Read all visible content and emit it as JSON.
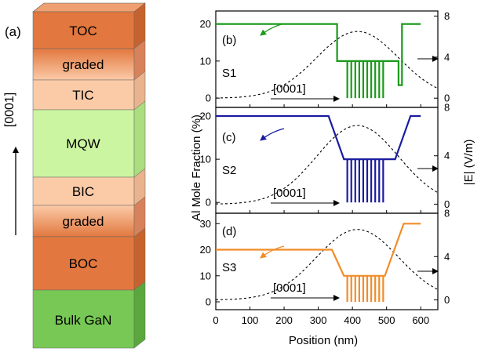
{
  "panel_a": {
    "label": "(a)",
    "direction_label": "[0001]",
    "layers": [
      {
        "name": "TOC",
        "color": "#e2783f"
      },
      {
        "name": "graded",
        "color": "#e9945f"
      },
      {
        "name": "TIC",
        "color": "#fbcaa7"
      },
      {
        "name": "MQW",
        "color": "#ccf5a1"
      },
      {
        "name": "BIC",
        "color": "#fbcaa7"
      },
      {
        "name": "graded",
        "color": "#e9945f"
      },
      {
        "name": "BOC",
        "color": "#e2783f"
      },
      {
        "name": "Bulk GaN",
        "color": "#78c855"
      }
    ]
  },
  "chart_data": [
    {
      "type": "line",
      "panel_label": "(b)",
      "structure_label": "S1",
      "direction_label": "[0001]",
      "color": "#1a9a1a",
      "ylim_left": [
        -2.5,
        23.5
      ],
      "ylim_right": [
        -0.9,
        8.5
      ],
      "left_ticks": [
        0,
        10,
        20
      ],
      "right_ticks": [
        0,
        4,
        8
      ],
      "al_fraction": {
        "x": [
          0,
          355,
          355,
          535,
          535,
          545,
          545,
          600
        ],
        "y": [
          20,
          20,
          10,
          10,
          3.5,
          3.5,
          20,
          20
        ]
      },
      "wells": {
        "x_start": 385,
        "x_end": 490,
        "count": 10,
        "low": 0,
        "high": 10
      }
    },
    {
      "type": "line",
      "panel_label": "(c)",
      "structure_label": "S2",
      "direction_label": "[0001]",
      "color": "#1c1ca0",
      "ylim_left": [
        -2.5,
        22
      ],
      "ylim_right": [
        -0.75,
        8
      ],
      "left_ticks": [
        0,
        10,
        20
      ],
      "right_ticks": [
        0,
        4,
        8
      ],
      "al_fraction": {
        "x": [
          0,
          330,
          375,
          525,
          570,
          600
        ],
        "y": [
          20,
          20,
          10,
          10,
          20,
          20
        ]
      },
      "wells": {
        "x_start": 385,
        "x_end": 490,
        "count": 10,
        "low": 0,
        "high": 10
      }
    },
    {
      "type": "line",
      "panel_label": "(d)",
      "structure_label": "S3",
      "direction_label": "[0001]",
      "color": "#f28c28",
      "ylim_left": [
        -3,
        34
      ],
      "ylim_right": [
        -0.9,
        8
      ],
      "left_ticks": [
        0,
        10,
        20,
        30
      ],
      "right_ticks": [
        0,
        4,
        8
      ],
      "al_fraction": {
        "x": [
          0,
          340,
          375,
          495,
          550,
          600
        ],
        "y": [
          20,
          20,
          10,
          10,
          30,
          30
        ]
      },
      "wells": {
        "x_start": 385,
        "x_end": 490,
        "count": 10,
        "low": 0,
        "high": 10
      }
    }
  ],
  "field_profile": {
    "center": 415,
    "sigma": 120,
    "peak": 6.5
  },
  "axes": {
    "xlabel": "Position (nm)",
    "ylabel_left": "Al Mole Fraction (%)",
    "ylabel_right": "|E| (V/m)",
    "xlim": [
      0,
      650
    ],
    "x_ticks": [
      0,
      100,
      200,
      300,
      400,
      500,
      600
    ]
  }
}
